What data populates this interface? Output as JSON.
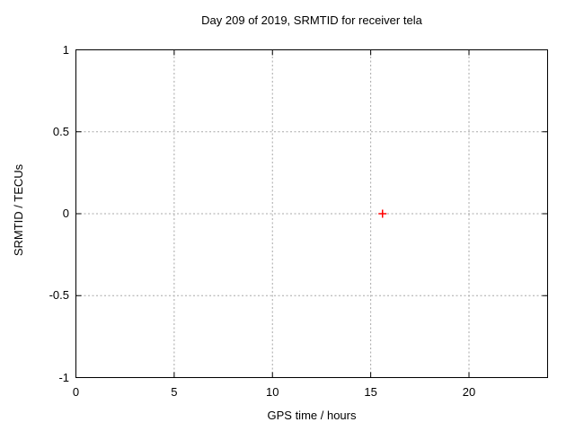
{
  "figure": {
    "background": "#ffffff"
  },
  "chart_data": {
    "type": "scatter",
    "title": "Day 209 of 2019, SRMTID for receiver tela",
    "xlabel": "GPS time / hours",
    "ylabel": "SRMTID / TECUs",
    "xlim": [
      0,
      24
    ],
    "ylim": [
      -1,
      1
    ],
    "xticks": [
      0,
      5,
      10,
      15,
      20
    ],
    "yticks": [
      -1,
      -0.5,
      0,
      0.5,
      1
    ],
    "grid": true,
    "legend_position": "none",
    "colors": {
      "border": "#000000",
      "grid": "#a8a8a8",
      "text": "#000000"
    },
    "series": [
      {
        "name": "SRMTID",
        "marker": "plus",
        "color": "#ff0000",
        "points": [
          [
            15.6,
            0.0
          ]
        ]
      }
    ]
  }
}
